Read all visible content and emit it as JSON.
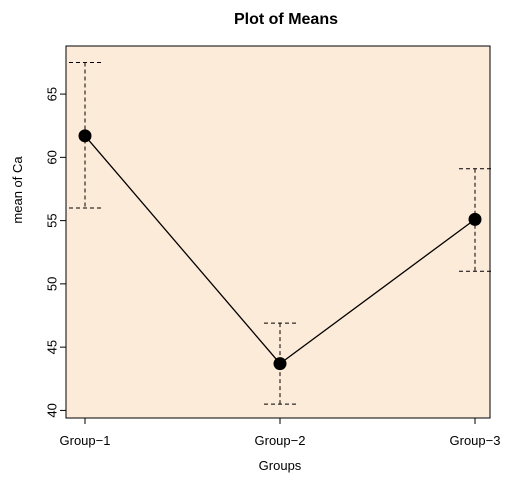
{
  "chart_data": {
    "type": "line",
    "title": "Plot of Means",
    "xlabel": "Groups",
    "ylabel": "mean of Ca",
    "categories": [
      "Group−1",
      "Group−2",
      "Group−3"
    ],
    "series": [
      {
        "values": [
          61.7,
          43.7,
          55.1
        ],
        "error_low": [
          56.0,
          40.5,
          51.0
        ],
        "error_high": [
          67.5,
          46.9,
          59.1
        ]
      }
    ],
    "yticks": [
      40,
      45,
      50,
      55,
      60,
      65
    ],
    "ylim": [
      39.4,
      68.8
    ],
    "grid": false,
    "colors": {
      "panel_background": "#fdebd9",
      "line": "#000000",
      "points": "#000000"
    }
  }
}
